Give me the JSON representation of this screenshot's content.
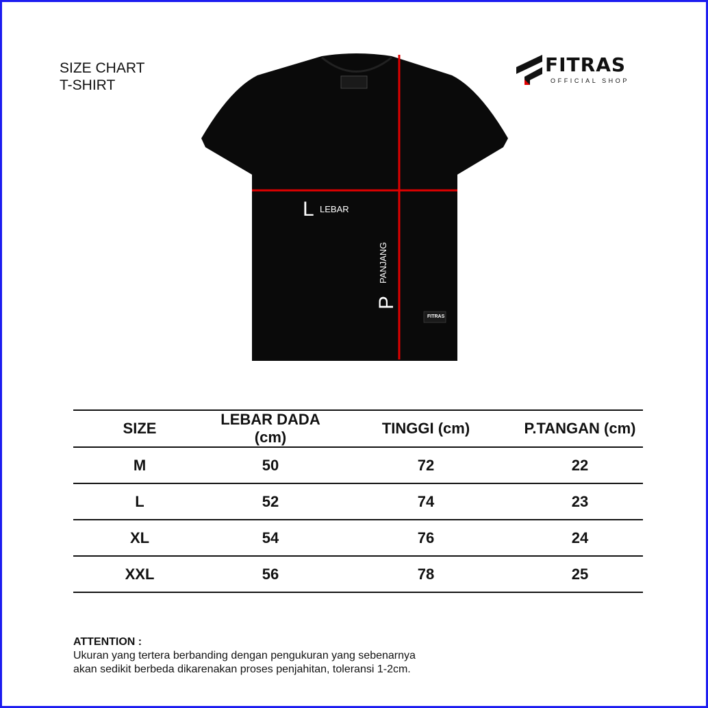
{
  "title": {
    "line1": "SIZE CHART",
    "line2": "T-SHIRT"
  },
  "logo": {
    "brand": "FITRAS",
    "tagline": "OFFICIAL SHOP"
  },
  "colors": {
    "border": "#1c1cf0",
    "measure_line": "#e00000",
    "shirt": "#0a0a0a",
    "logo_accent": "#e00000"
  },
  "diagram": {
    "width_letter": "L",
    "width_label": "LEBAR",
    "length_letter": "P",
    "length_label": "PANJANG",
    "tag_text": "FITRAS"
  },
  "table": {
    "headers": [
      "SIZE",
      "LEBAR DADA (cm)",
      "TINGGI (cm)",
      "P.TANGAN (cm)"
    ],
    "rows": [
      [
        "M",
        "50",
        "72",
        "22"
      ],
      [
        "L",
        "52",
        "74",
        "23"
      ],
      [
        "XL",
        "54",
        "76",
        "24"
      ],
      [
        "XXL",
        "56",
        "78",
        "25"
      ]
    ]
  },
  "attention": {
    "heading": "ATTENTION :",
    "line1": "Ukuran yang tertera berbanding dengan pengukuran yang sebenarnya",
    "line2": "akan sedikit berbeda dikarenakan proses penjahitan, toleransi 1-2cm."
  }
}
